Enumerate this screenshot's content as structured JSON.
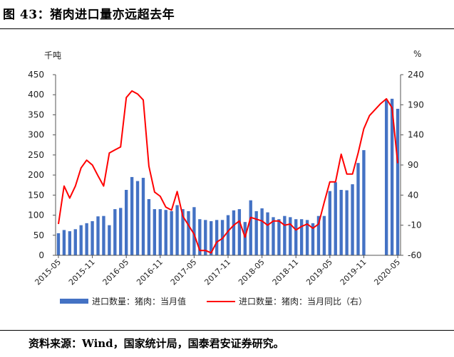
{
  "figure": {
    "title": "图 43：猪肉进口量亦远超去年",
    "source": "资料来源：Wind，国家统计局，国泰君安证券研究。"
  },
  "chart_data": {
    "type": "bar+line",
    "left_axis": {
      "unit_label": "千吨",
      "ylim": [
        0,
        450
      ],
      "ticks": [
        0,
        50,
        100,
        150,
        200,
        250,
        300,
        350,
        400,
        450
      ]
    },
    "right_axis": {
      "unit_label": "%",
      "ylim": [
        -60,
        240
      ],
      "ticks": [
        -60,
        -10,
        40,
        90,
        140,
        190,
        240
      ]
    },
    "x_tick_labels": [
      "2015-05",
      "2015-11",
      "2016-05",
      "2016-11",
      "2017-05",
      "2017-11",
      "2018-05",
      "2018-11",
      "2019-05",
      "2019-11",
      "2020-05"
    ],
    "months": [
      "2015-05",
      "2015-06",
      "2015-07",
      "2015-08",
      "2015-09",
      "2015-10",
      "2015-11",
      "2015-12",
      "2016-01",
      "2016-02",
      "2016-03",
      "2016-04",
      "2016-05",
      "2016-06",
      "2016-07",
      "2016-08",
      "2016-09",
      "2016-10",
      "2016-11",
      "2016-12",
      "2017-01",
      "2017-02",
      "2017-03",
      "2017-04",
      "2017-05",
      "2017-06",
      "2017-07",
      "2017-08",
      "2017-09",
      "2017-10",
      "2017-11",
      "2017-12",
      "2018-01",
      "2018-02",
      "2018-03",
      "2018-04",
      "2018-05",
      "2018-06",
      "2018-07",
      "2018-08",
      "2018-09",
      "2018-10",
      "2018-11",
      "2018-12",
      "2019-01",
      "2019-02",
      "2019-03",
      "2019-04",
      "2019-05",
      "2019-06",
      "2019-07",
      "2019-08",
      "2019-09",
      "2019-10",
      "2019-11",
      "2019-12",
      "2020-01",
      "2020-02",
      "2020-03",
      "2020-04",
      "2020-05"
    ],
    "series": [
      {
        "name": "进口数量：猪肉：当月值",
        "type": "bar",
        "axis": "left",
        "color": "#4472C4",
        "values": [
          55,
          63,
          60,
          65,
          75,
          80,
          85,
          97,
          98,
          75,
          115,
          118,
          163,
          195,
          185,
          193,
          140,
          115,
          115,
          113,
          110,
          125,
          115,
          110,
          120,
          90,
          88,
          85,
          88,
          88,
          100,
          112,
          115,
          83,
          137,
          110,
          117,
          107,
          95,
          90,
          98,
          95,
          90,
          90,
          88,
          80,
          98,
          98,
          160,
          182,
          163,
          162,
          177,
          230,
          262,
          null,
          null,
          null,
          388,
          390,
          365
        ]
      },
      {
        "name": "进口数量：猪肉：当月同比（右）",
        "type": "line",
        "axis": "right",
        "color": "#FF0000",
        "values": [
          -8,
          55,
          35,
          55,
          85,
          98,
          90,
          72,
          55,
          110,
          115,
          120,
          202,
          213,
          208,
          198,
          88,
          45,
          38,
          20,
          15,
          46,
          5,
          -10,
          -25,
          -52,
          -52,
          -56,
          -38,
          -32,
          -20,
          -10,
          -3,
          -30,
          3,
          0,
          -3,
          -10,
          -3,
          -3,
          -10,
          -8,
          -18,
          -12,
          -8,
          -15,
          -8,
          28,
          62,
          62,
          108,
          75,
          75,
          110,
          150,
          172,
          182,
          192,
          200,
          185,
          93
        ]
      }
    ],
    "grid": false,
    "legend_position": "bottom"
  }
}
